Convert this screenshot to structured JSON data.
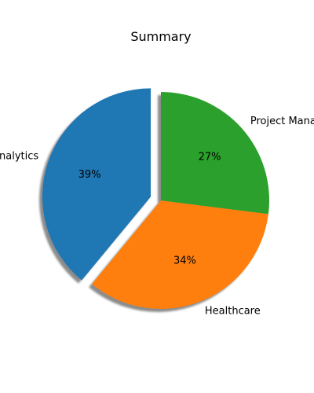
{
  "chart_data": {
    "type": "pie",
    "title": "Summary",
    "startangle": 90,
    "counterclock": true,
    "shadow": true,
    "slices": [
      {
        "label": "Analytics",
        "value": 39,
        "pct_label": "39%",
        "color": "#1f77b4",
        "exploded": true
      },
      {
        "label": "Healthcare",
        "value": 34,
        "pct_label": "34%",
        "color": "#ff7f0e",
        "exploded": false
      },
      {
        "label": "Project Management",
        "value": 27,
        "pct_label": "27%",
        "color": "#2ca02c",
        "exploded": false
      }
    ]
  }
}
